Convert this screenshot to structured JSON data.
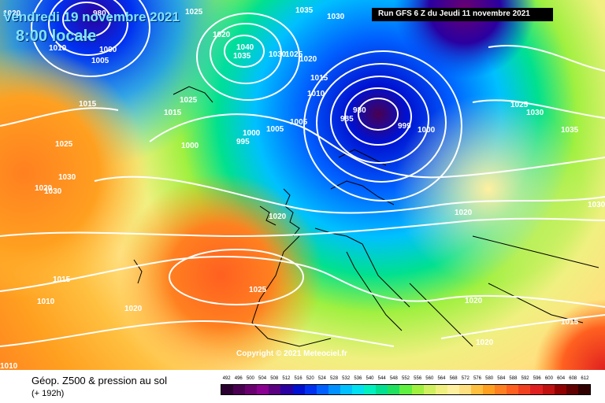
{
  "header": {
    "valid_date": "Vendredi 19 novembre 2021",
    "valid_time": "8:00 locale",
    "run": "Run GFS 6 Z du Jeudi 11 novembre 2021"
  },
  "copyright": "Copyright © 2021 Meteociel.fr",
  "footer": {
    "title": "Géop. Z500 & pression au sol",
    "lead": "(+ 192h)"
  },
  "legend": {
    "values": [
      492,
      496,
      500,
      504,
      508,
      512,
      516,
      520,
      524,
      528,
      532,
      536,
      540,
      544,
      548,
      552,
      556,
      560,
      564,
      568,
      572,
      576,
      580,
      584,
      588,
      592,
      596,
      600,
      604,
      608,
      612
    ],
    "colors": [
      "#2a0030",
      "#4a0050",
      "#6a0070",
      "#8a0090",
      "#5a0080",
      "#2a00a0",
      "#0010d0",
      "#0030f0",
      "#0060ff",
      "#0090ff",
      "#00c0ff",
      "#00e0f0",
      "#00f0c0",
      "#00e090",
      "#20e060",
      "#60f040",
      "#a0f040",
      "#d0f060",
      "#f0f080",
      "#fff0a0",
      "#ffe080",
      "#ffc040",
      "#ffa020",
      "#ff8020",
      "#ff6020",
      "#f04020",
      "#e02020",
      "#c01010",
      "#900000",
      "#600000",
      "#300000"
    ]
  },
  "pressure_labels": [
    "1020",
    "980",
    "1025",
    "1035",
    "1030",
    "1010",
    "1000",
    "1005",
    "1020",
    "1040",
    "1035",
    "1030",
    "1025",
    "1020",
    "1015",
    "1010",
    "1015",
    "1025",
    "1015",
    "1005",
    "1005",
    "1000",
    "1000",
    "995",
    "980",
    "985",
    "999",
    "1000",
    "1025",
    "1030",
    "1035",
    "1025",
    "1030",
    "1020",
    "1030",
    "1030",
    "1020",
    "1020",
    "1015",
    "1010",
    "1025",
    "1020",
    "1020",
    "1015",
    "1020",
    "1010"
  ]
}
